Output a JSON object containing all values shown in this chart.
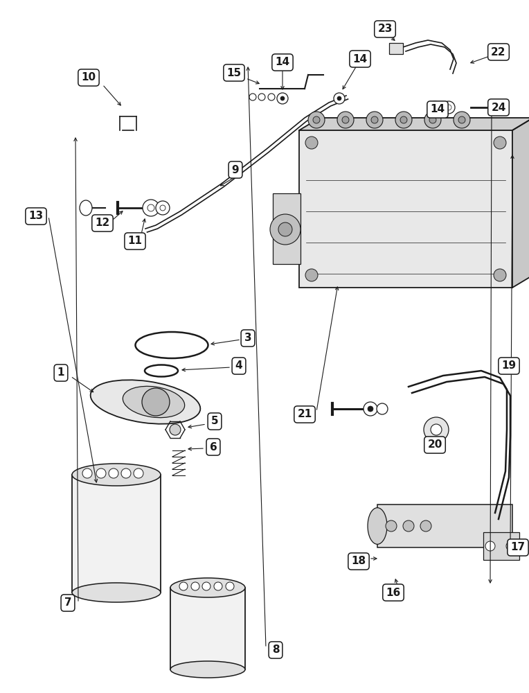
{
  "bg": "#ffffff",
  "lc": "#1a1a1a",
  "fig_w": 7.64,
  "fig_h": 10.0,
  "dpi": 100
}
